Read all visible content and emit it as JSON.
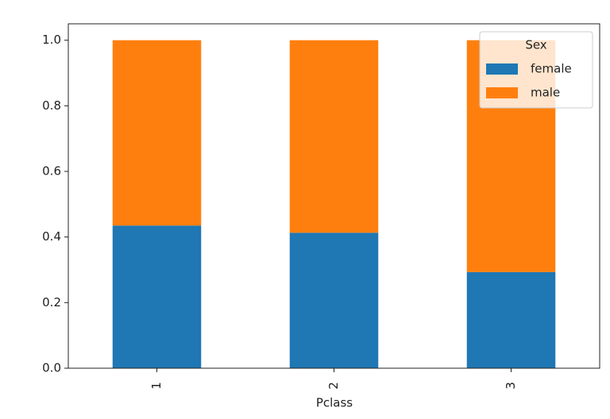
{
  "chart_data": {
    "type": "stacked_bar",
    "x_label": "Pclass",
    "categories": [
      "1",
      "2",
      "3"
    ],
    "series": [
      {
        "name": "female",
        "color": "#1f77b4",
        "values": [
          0.435,
          0.413,
          0.293
        ]
      },
      {
        "name": "male",
        "color": "#ff7f0e",
        "values": [
          0.565,
          0.587,
          0.707
        ]
      }
    ],
    "ylim": [
      0,
      1.05
    ],
    "yticks": [
      {
        "value": 0,
        "label": "0.0"
      },
      {
        "value": 0.2,
        "label": "0.2"
      },
      {
        "value": 0.4,
        "label": "0.4"
      },
      {
        "value": 0.6,
        "label": "0.6"
      },
      {
        "value": 0.8,
        "label": "0.8"
      },
      {
        "value": 1,
        "label": "1.0"
      }
    ],
    "legend_title": "Sex",
    "legend_position": "upper right"
  }
}
